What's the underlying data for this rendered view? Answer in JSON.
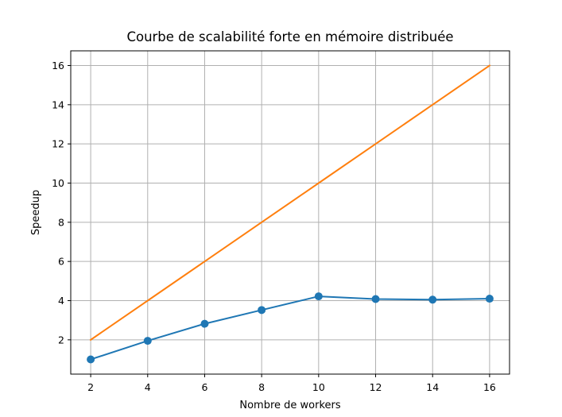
{
  "chart_data": {
    "type": "line",
    "title": "Courbe de scalabilité forte en mémoire distribuée",
    "xlabel": "Nombre de workers",
    "ylabel": "Speedup",
    "xlim": [
      1.3,
      16.7
    ],
    "ylim": [
      0.25,
      16.75
    ],
    "xticks": [
      2,
      4,
      6,
      8,
      10,
      12,
      14,
      16
    ],
    "yticks": [
      2,
      4,
      6,
      8,
      10,
      12,
      14,
      16
    ],
    "grid": true,
    "series": [
      {
        "x": [
          2,
          4,
          6,
          8,
          10,
          12,
          14,
          16
        ],
        "values": [
          1.0,
          1.95,
          2.82,
          3.52,
          4.22,
          4.08,
          4.05,
          4.1
        ],
        "color": "#1f77b4",
        "marker": "circle"
      },
      {
        "x": [
          2,
          4,
          6,
          8,
          10,
          12,
          14,
          16
        ],
        "values": [
          2,
          4,
          6,
          8,
          10,
          12,
          14,
          16
        ],
        "color": "#ff7f0e",
        "marker": "none"
      }
    ]
  }
}
